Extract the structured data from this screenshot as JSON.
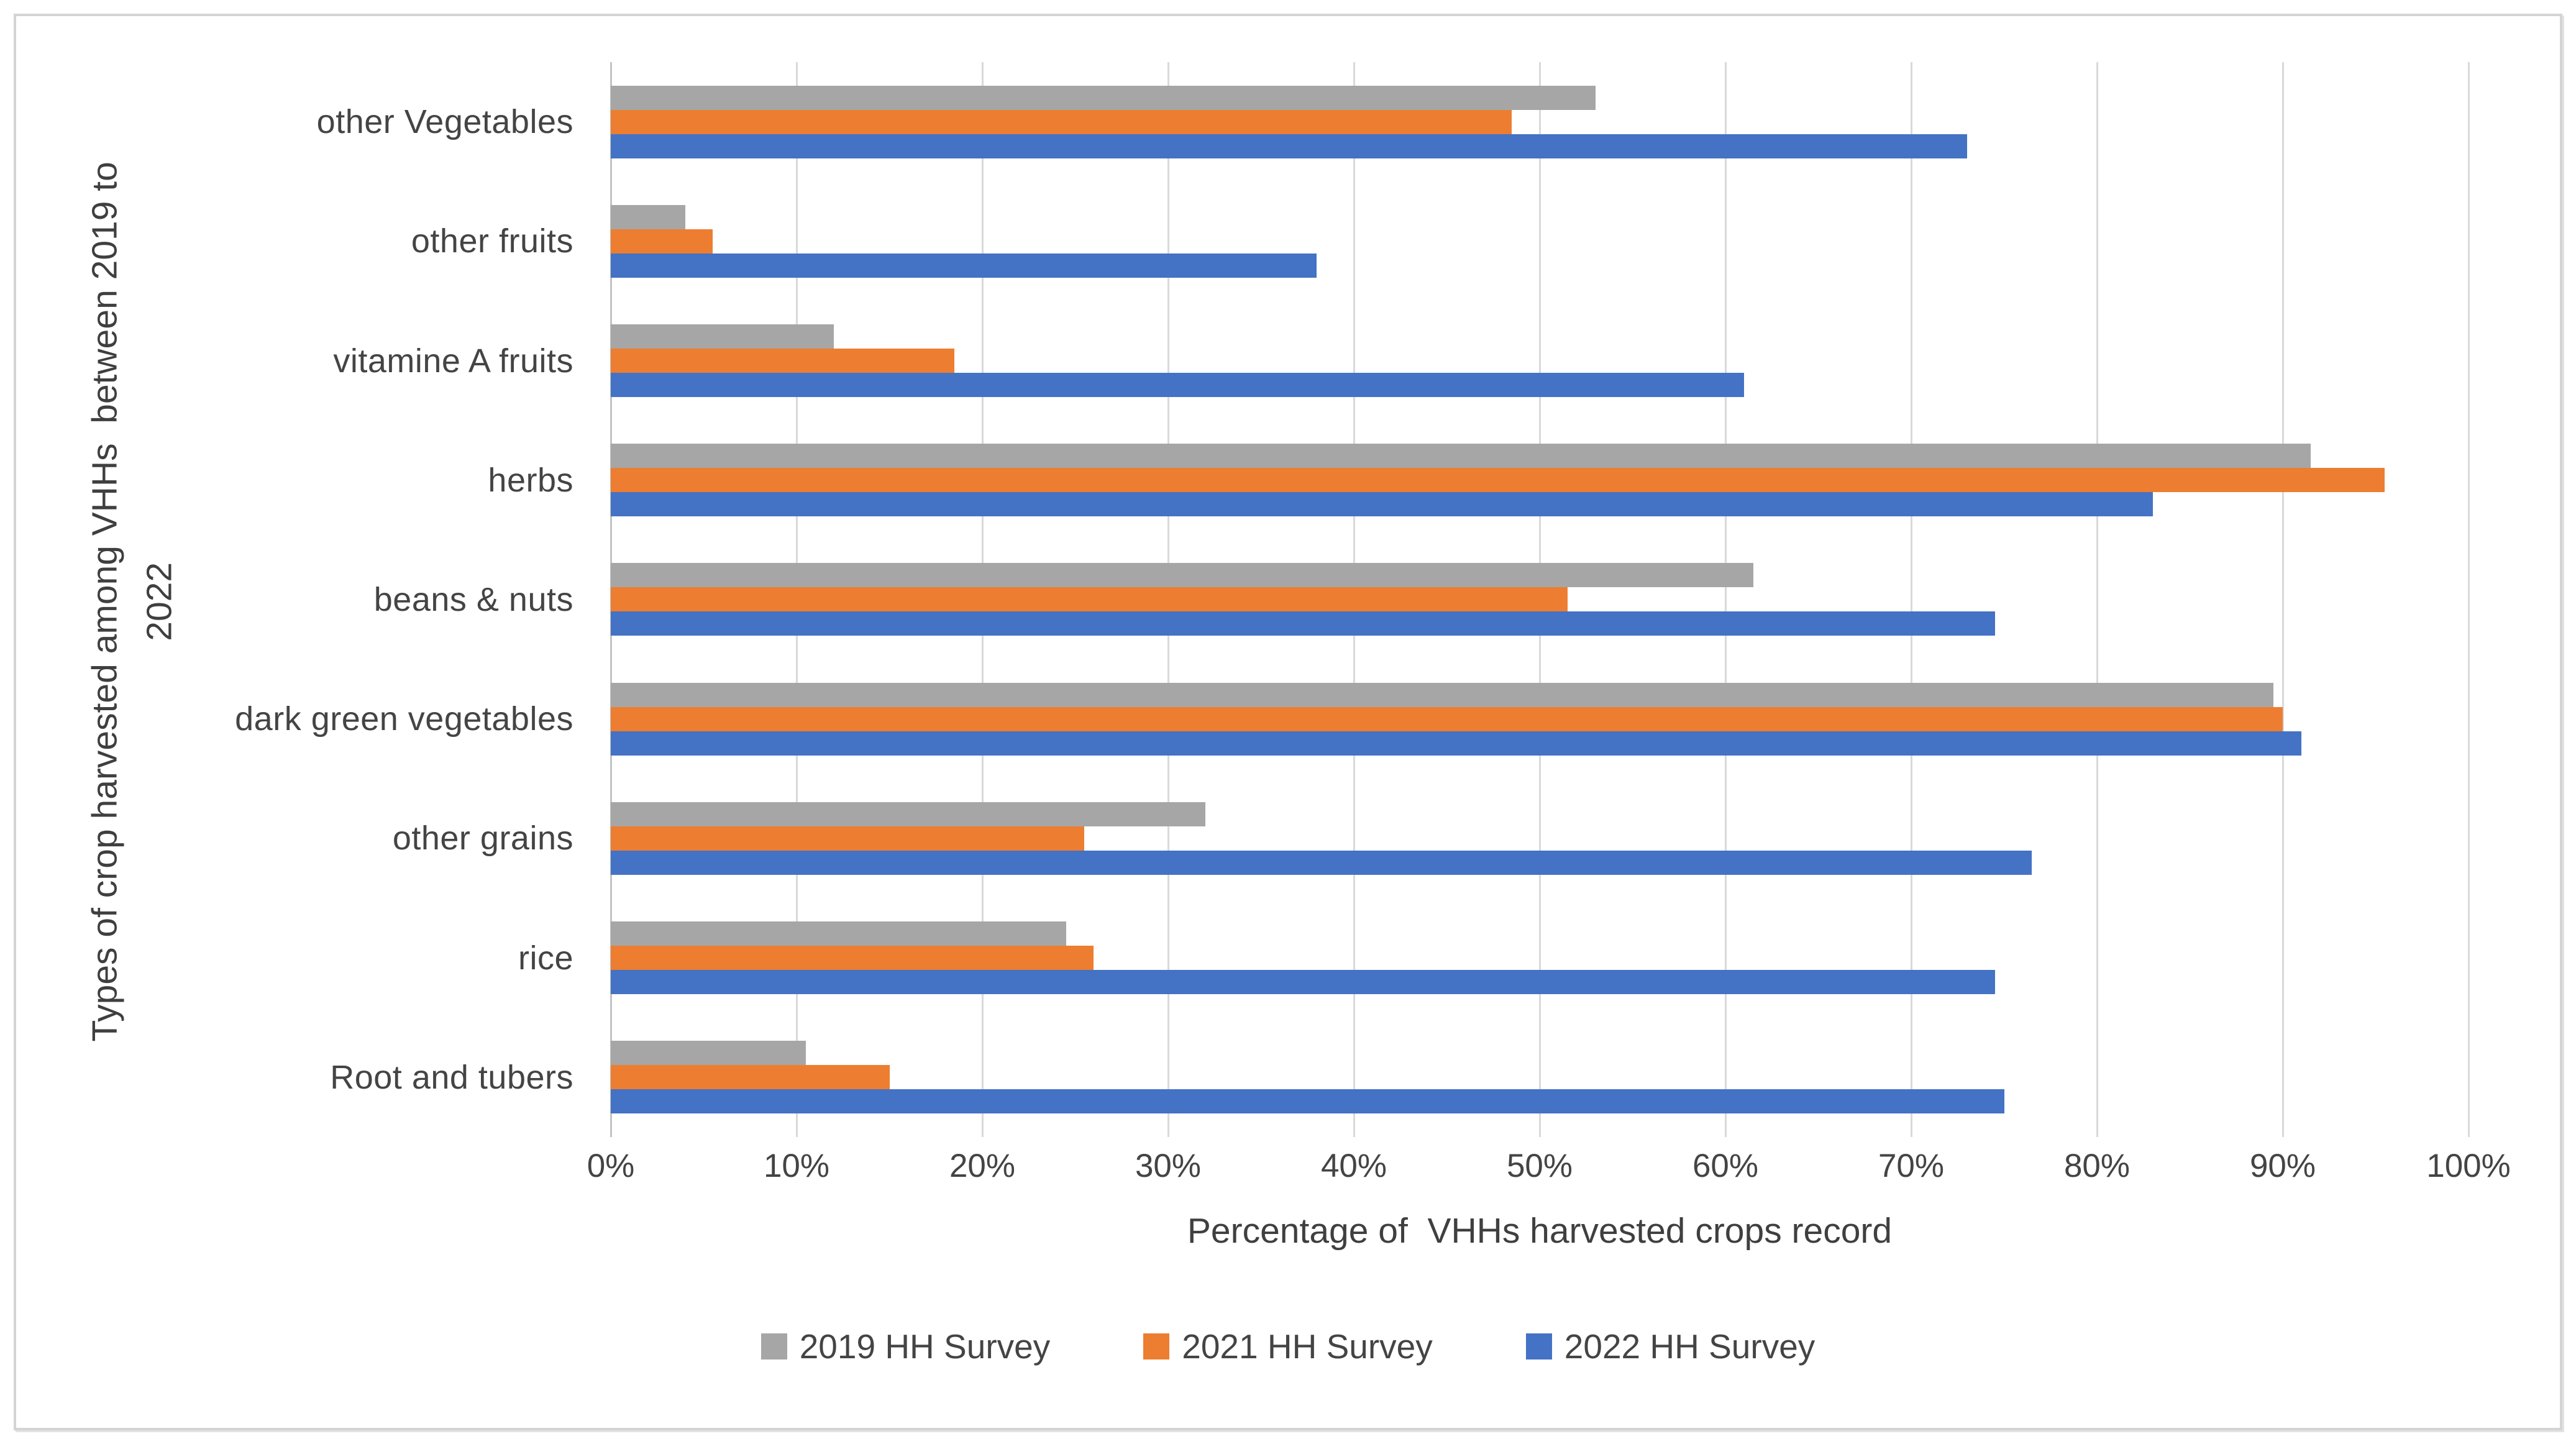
{
  "chart_data": {
    "type": "bar",
    "orientation": "horizontal",
    "title": "",
    "xlabel": "Percentage of  VHHs harvested crops record",
    "ylabel": "Types of crop harvested among VHHs  between 2019 to 2022",
    "ylabel_lines": [
      "Types of crop harvested among VHHs  between 2019 to",
      "2022"
    ],
    "categories": [
      "other Vegetables",
      "other fruits",
      "vitamine A fruits",
      "herbs",
      "beans & nuts",
      "dark green vegetables",
      "other grains",
      "rice",
      "Root and tubers"
    ],
    "series": [
      {
        "name": "2019 HH Survey",
        "color": "#A6A6A6",
        "values": [
          53,
          4,
          12,
          91.5,
          61.5,
          89.5,
          32,
          24.5,
          10.5
        ]
      },
      {
        "name": "2021 HH Survey",
        "color": "#ED7D31",
        "values": [
          48.5,
          5.5,
          18.5,
          95.5,
          51.5,
          90,
          25.5,
          26,
          15
        ]
      },
      {
        "name": "2022 HH Survey",
        "color": "#4472C4",
        "values": [
          73,
          38,
          61,
          83,
          74.5,
          91,
          76.5,
          74.5,
          75
        ]
      }
    ],
    "xlim": [
      0,
      100
    ],
    "x_ticks": [
      "0%",
      "10%",
      "20%",
      "30%",
      "40%",
      "50%",
      "60%",
      "70%",
      "80%",
      "90%",
      "100%"
    ],
    "x_tick_values": [
      0,
      10,
      20,
      30,
      40,
      50,
      60,
      70,
      80,
      90,
      100
    ],
    "grid": "vertical-on",
    "legend_position": "bottom"
  },
  "styles": {
    "text_color": "#444444",
    "gridline_color": "#d9d9d9",
    "zero_line_color": "#c3c3c3",
    "frame_border_color": "#d4d4d4",
    "background": "#ffffff"
  }
}
